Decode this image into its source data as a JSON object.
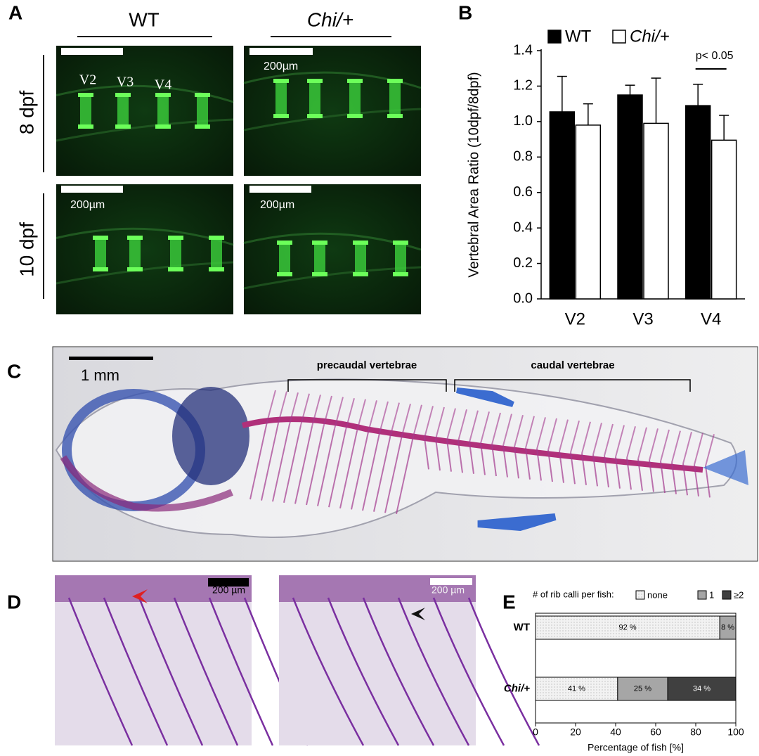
{
  "panel_a": {
    "label": "A",
    "columns": [
      "WT",
      "Chi/+"
    ],
    "rows": [
      "8 dpf",
      "10 dpf"
    ],
    "vertebra_labels": [
      "V2",
      "V3",
      "V4"
    ],
    "scale_labels": [
      "200µm",
      "200µm",
      "200µm"
    ]
  },
  "panel_c": {
    "label": "C",
    "scale_label": "1 mm",
    "regions": [
      "precaudal vertebrae",
      "caudal vertebrae"
    ]
  },
  "panel_d": {
    "label": "D",
    "scale_labels": [
      "200 µm",
      "200 µm"
    ]
  },
  "chart_data": [
    {
      "type": "bar",
      "panel_label": "B",
      "ylabel": "Vertebral Area Ratio (10dpf/8dpf)",
      "categories": [
        "V2",
        "V3",
        "V4"
      ],
      "series": [
        {
          "name": "WT",
          "color": "#000000",
          "values": [
            1.055,
            1.15,
            1.09
          ],
          "errors": [
            0.2,
            0.055,
            0.12
          ]
        },
        {
          "name": "Chi/+",
          "color": "#ffffff",
          "values": [
            0.98,
            0.99,
            0.895
          ],
          "errors": [
            0.12,
            0.255,
            0.14
          ]
        }
      ],
      "ylim": [
        0,
        1.4
      ],
      "yticks": [
        {
          "value": 0,
          "label": "0.0"
        },
        0.2,
        0.4,
        0.6,
        0.8,
        {
          "value": 1,
          "label": "1.0"
        },
        1.2,
        1.4
      ],
      "annotation": "p< 0.05",
      "legend": "top"
    },
    {
      "type": "stacked-bar-horizontal",
      "panel_label": "E",
      "legend_title": "# of rib calli per fish:",
      "xlabel": "Percentage of fish [%]",
      "categories": [
        "WT",
        "Chi/+"
      ],
      "series": [
        {
          "name": "none",
          "color": "#e6e6e6",
          "values": [
            92,
            41
          ],
          "value_labels": [
            "92 %",
            "41 %"
          ]
        },
        {
          "name": "1",
          "color": "#a6a6a6",
          "values": [
            8,
            25
          ],
          "value_labels": [
            "8 %",
            "25 %"
          ]
        },
        {
          "name": "≥2",
          "color": "#404040",
          "values": [
            0,
            34
          ],
          "value_labels": [
            null,
            "34 %"
          ]
        }
      ],
      "xlim": [
        0,
        100
      ],
      "xticks": [
        0,
        20,
        40,
        60,
        80,
        100
      ],
      "legend": "top"
    }
  ]
}
